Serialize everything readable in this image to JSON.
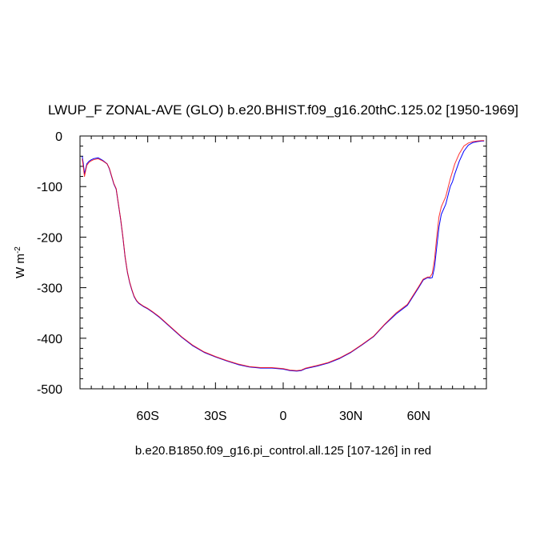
{
  "chart_data": {
    "type": "line",
    "title": "LWUP_F ZONAL-AVE (GLO) b.e20.BHIST.f09_g16.20thC.125.02 [1950-1969]",
    "subtitle": "b.e20.B1850.f09_g16.pi_control.all.125 [107-126] in red",
    "xlabel": "",
    "ylabel_main": "W m",
    "ylabel_sup": "-2",
    "xlim": [
      -90,
      90
    ],
    "ylim": [
      -500,
      0
    ],
    "x_ticks": [
      -60,
      -30,
      0,
      30,
      60
    ],
    "x_tick_labels": [
      "60S",
      "30S",
      "0",
      "30N",
      "60N"
    ],
    "y_ticks": [
      0,
      -100,
      -200,
      -300,
      -400,
      -500
    ],
    "y_tick_labels": [
      "0",
      "-100",
      "-200",
      "-300",
      "-400",
      "-500"
    ],
    "grid": false,
    "series": [
      {
        "name": "b.e20.BHIST.f09_g16.20thC.125.02 [1950-1969]",
        "color": "#0000ff",
        "x": [
          -89,
          -88.5,
          -88,
          -87.5,
          -87,
          -86,
          -85,
          -84,
          -82,
          -80,
          -78,
          -77,
          -76,
          -75,
          -74,
          -73,
          -72,
          -71,
          -70,
          -69,
          -68,
          -67,
          -66,
          -65,
          -64,
          -63,
          -62,
          -60,
          -58,
          -55,
          -50,
          -45,
          -40,
          -35,
          -30,
          -25,
          -20,
          -15,
          -10,
          -5,
          0,
          3,
          6,
          8,
          10,
          15,
          20,
          25,
          30,
          35,
          40,
          45,
          50,
          55,
          60,
          62,
          64,
          65,
          66,
          67,
          68,
          69,
          70,
          72,
          74,
          75,
          76,
          78,
          80,
          82,
          84,
          86,
          88,
          89
        ],
        "values": [
          -40,
          -55,
          -75,
          -65,
          -55,
          -50,
          -47,
          -45,
          -43,
          -48,
          -55,
          -65,
          -80,
          -95,
          -105,
          -135,
          -165,
          -200,
          -240,
          -270,
          -290,
          -305,
          -318,
          -326,
          -331,
          -334,
          -337,
          -342,
          -348,
          -358,
          -378,
          -398,
          -415,
          -428,
          -437,
          -445,
          -452,
          -457,
          -459,
          -459,
          -461,
          -464,
          -465,
          -464,
          -460,
          -455,
          -449,
          -440,
          -428,
          -413,
          -397,
          -373,
          -352,
          -335,
          -300,
          -285,
          -280,
          -281,
          -280,
          -260,
          -220,
          -180,
          -155,
          -135,
          -100,
          -90,
          -75,
          -50,
          -30,
          -18,
          -13,
          -11,
          -10,
          -10
        ]
      },
      {
        "name": "b.e20.B1850.f09_g16.pi_control.all.125 [107-126]",
        "color": "#ff0000",
        "x": [
          -89,
          -88.5,
          -88,
          -87.5,
          -87,
          -86,
          -85,
          -84,
          -82,
          -80,
          -78,
          -77,
          -76,
          -75,
          -74,
          -73,
          -72,
          -71,
          -70,
          -69,
          -68,
          -67,
          -66,
          -65,
          -64,
          -63,
          -62,
          -60,
          -58,
          -55,
          -50,
          -45,
          -40,
          -35,
          -30,
          -25,
          -20,
          -15,
          -10,
          -5,
          0,
          3,
          6,
          8,
          10,
          15,
          20,
          25,
          30,
          35,
          40,
          45,
          50,
          55,
          60,
          62,
          64,
          65,
          66,
          67,
          68,
          69,
          70,
          72,
          74,
          75,
          76,
          78,
          80,
          82,
          84,
          86,
          88,
          89
        ],
        "values": [
          -45,
          -62,
          -80,
          -68,
          -58,
          -52,
          -49,
          -47,
          -45,
          -49,
          -55,
          -64,
          -79,
          -94,
          -104,
          -134,
          -164,
          -199,
          -239,
          -269,
          -289,
          -304,
          -317,
          -325,
          -330,
          -333,
          -336,
          -341,
          -347,
          -357,
          -377,
          -397,
          -414,
          -427,
          -436,
          -444,
          -451,
          -456,
          -458,
          -458,
          -460,
          -463,
          -464,
          -463,
          -459,
          -454,
          -448,
          -439,
          -427,
          -412,
          -396,
          -372,
          -350,
          -333,
          -298,
          -283,
          -279,
          -279,
          -272,
          -245,
          -200,
          -160,
          -140,
          -120,
          -85,
          -70,
          -55,
          -35,
          -20,
          -14,
          -11,
          -10,
          -9,
          -9
        ]
      }
    ]
  }
}
